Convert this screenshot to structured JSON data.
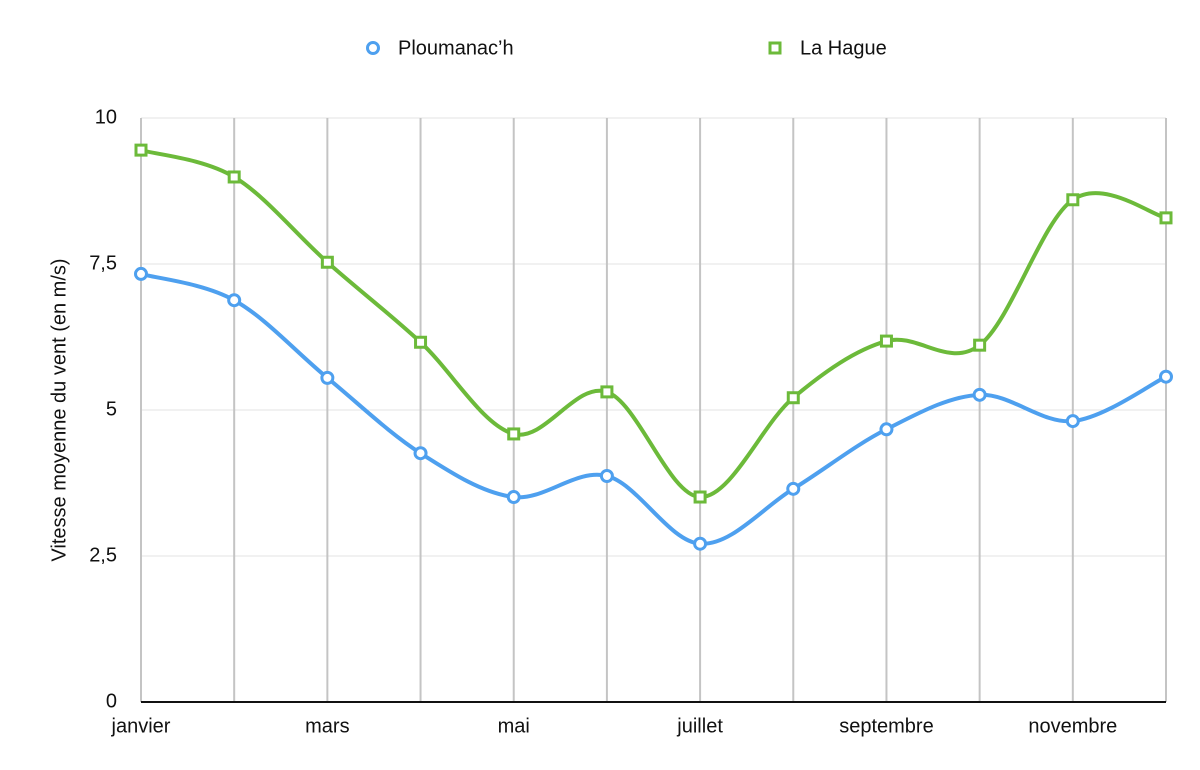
{
  "chart_data": {
    "type": "line",
    "y_label": "Vitesse moyenne du vent (en m/s)",
    "categories": [
      "janvier",
      null,
      "mars",
      null,
      "mai",
      null,
      "juillet",
      null,
      "septembre",
      null,
      "novembre",
      null
    ],
    "series": [
      {
        "name": "Ploumanac’h",
        "color": "#4ea0ef",
        "marker": "circle",
        "values": [
          7.33,
          6.88,
          5.55,
          4.26,
          3.51,
          3.87,
          2.71,
          3.65,
          4.67,
          5.26,
          4.81,
          5.57
        ]
      },
      {
        "name": "La Hague",
        "color": "#6cba3a",
        "marker": "square",
        "values": [
          9.45,
          8.99,
          7.53,
          6.16,
          4.59,
          5.31,
          3.51,
          5.21,
          6.18,
          6.11,
          8.6,
          8.29
        ]
      }
    ],
    "ylim": [
      0,
      10
    ],
    "yticks": [
      0,
      {
        "value": 2.5,
        "label": "2,5"
      },
      5,
      {
        "value": 7.5,
        "label": "7,5"
      },
      10
    ],
    "grid": true
  }
}
